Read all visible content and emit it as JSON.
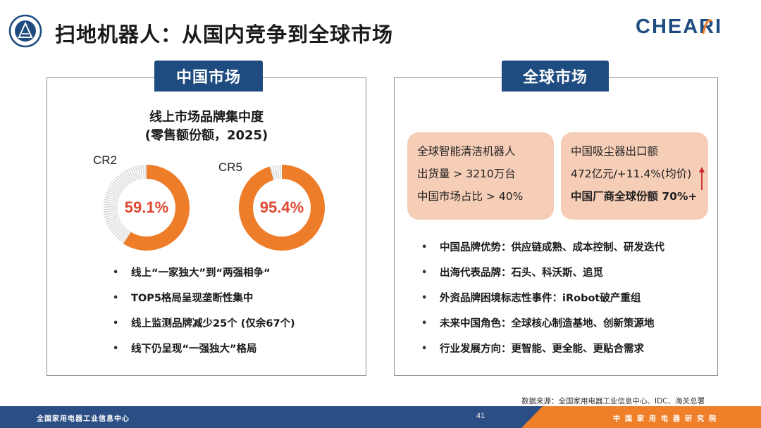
{
  "page": {
    "title": "扫地机器人：从国内竞争到全球市场",
    "brand_logo": "CHEARI",
    "brand_color": "#1f4c80",
    "accent_color": "#ee7d2a"
  },
  "china_market": {
    "tab_label": "中国市场",
    "chart_title_line1": "线上市场品牌集中度",
    "chart_title_line2": "(零售额份额，2025)",
    "bullets": [
      "线上“一家独大”到“两强相争“",
      "TOP5格局呈现垄断性集中",
      "线上监测品牌减少25个 (仅余67个)",
      "线下仍呈现“一强独大”格局"
    ]
  },
  "chart_data": [
    {
      "type": "pie",
      "title": "CR2",
      "values": [
        59.1,
        40.9
      ],
      "value_label": "59.1%",
      "colors": [
        "#ee7d2a",
        "#d9d9d9"
      ]
    },
    {
      "type": "pie",
      "title": "CR5",
      "values": [
        95.4,
        4.6
      ],
      "value_label": "95.4%",
      "colors": [
        "#ee7d2a",
        "#d9d9d9"
      ]
    }
  ],
  "global_market": {
    "tab_label": "全球市场",
    "box1": [
      "全球智能清洁机器人",
      "出货量 > 3210万台",
      "中国市场占比 > 40%"
    ],
    "box2": [
      "中国吸尘器出口额",
      "472亿元/+11.4%(均价)",
      "中国厂商全球份额 70%+"
    ],
    "bullets": [
      "中国品牌优势：供应链成熟、成本控制、研发迭代",
      "出海代表品牌：石头、科沃斯、追觅",
      "外资品牌困境标志性事件：iRobot破产重组",
      "未来中国角色：全球核心制造基地、创新策源地",
      "行业发展方向：更智能、更全能、更贴合需求"
    ]
  },
  "source_note": "数据来源：全国家用电器工业信息中心、IDC、海关总署",
  "footer": {
    "left_text": "全国家用电器工业信息中心",
    "page_number": "41",
    "right_text": "中国家用电器研究院"
  }
}
